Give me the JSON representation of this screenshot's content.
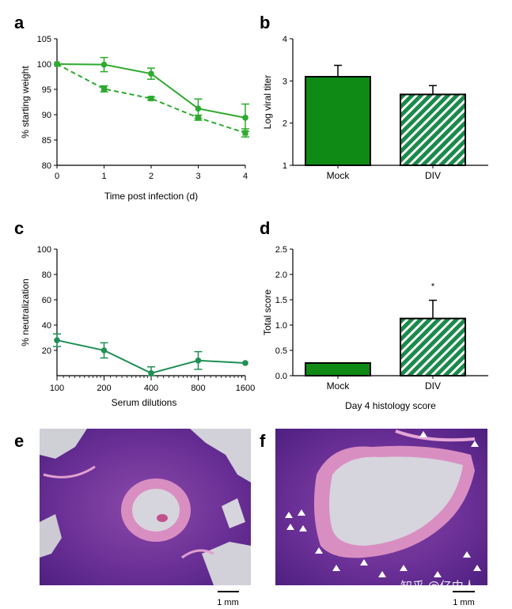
{
  "panels": {
    "a": "a",
    "b": "b",
    "c": "c",
    "d": "d",
    "e": "e",
    "f": "f"
  },
  "colors": {
    "green_light": "#2eaa2e",
    "green_dark": "#1f8f55",
    "bar_mock": "#0f8a15",
    "bar_div": "#1a8a4a",
    "tissue_pink": "#d88ac0",
    "tissue_purple": "#5a2a8a",
    "lumen": "#d6d4dc"
  },
  "scalebars": {
    "e": "1 mm",
    "f": "1 mm"
  },
  "watermark": "知乎 @亿中人",
  "chart_data": [
    {
      "id": "a",
      "type": "line",
      "xlabel": "Time post infection (d)",
      "ylabel": "% starting weight",
      "xlim": [
        0,
        4
      ],
      "ylim": [
        80,
        105
      ],
      "xticks": [
        "0",
        "1",
        "2",
        "3",
        "4"
      ],
      "yticks": [
        "80",
        "85",
        "90",
        "95",
        "100",
        "105"
      ],
      "x": [
        0,
        1,
        2,
        3,
        4
      ],
      "series": [
        {
          "style": "solid",
          "values": [
            100,
            99.9,
            98.1,
            91.2,
            89.4
          ],
          "errors": [
            0,
            1.4,
            1.1,
            1.9,
            2.7
          ]
        },
        {
          "style": "dashed",
          "values": [
            100,
            95.1,
            93.2,
            89.4,
            86.4
          ],
          "errors": [
            0,
            0.6,
            0.3,
            0.5,
            0.8
          ]
        }
      ]
    },
    {
      "id": "b",
      "type": "bar",
      "ylabel": "Log viral titer",
      "ylim": [
        1,
        4
      ],
      "yticks": [
        "1",
        "2",
        "3",
        "4"
      ],
      "categories": [
        "Mock",
        "DIV"
      ],
      "values": [
        3.1,
        2.68
      ],
      "errors": [
        0.27,
        0.21
      ],
      "fills": [
        "solid",
        "hatched"
      ]
    },
    {
      "id": "c",
      "type": "line",
      "xlabel": "Serum dilutions",
      "ylabel": "% neutralization",
      "ylim": [
        0,
        100
      ],
      "yticks": [
        "20",
        "40",
        "60",
        "80",
        "100"
      ],
      "xticks": [
        "100",
        "200",
        "400",
        "800",
        "1600"
      ],
      "x": [
        100,
        200,
        400,
        800,
        1600
      ],
      "xscale": "log",
      "series": [
        {
          "style": "solid",
          "values": [
            28,
            20,
            2,
            12,
            10
          ],
          "errors": [
            5,
            6,
            5,
            7,
            0
          ]
        }
      ]
    },
    {
      "id": "d",
      "type": "bar",
      "xlabel": "Day 4 histology score",
      "ylabel": "Total score",
      "ylim": [
        0,
        2.5
      ],
      "yticks": [
        "0.0",
        "0.5",
        "1.0",
        "1.5",
        "2.0",
        "2.5"
      ],
      "categories": [
        "Mock",
        "DIV"
      ],
      "values": [
        0.25,
        1.13
      ],
      "errors": [
        0,
        0.36
      ],
      "fills": [
        "solid",
        "hatched"
      ],
      "annotation": "*"
    }
  ]
}
